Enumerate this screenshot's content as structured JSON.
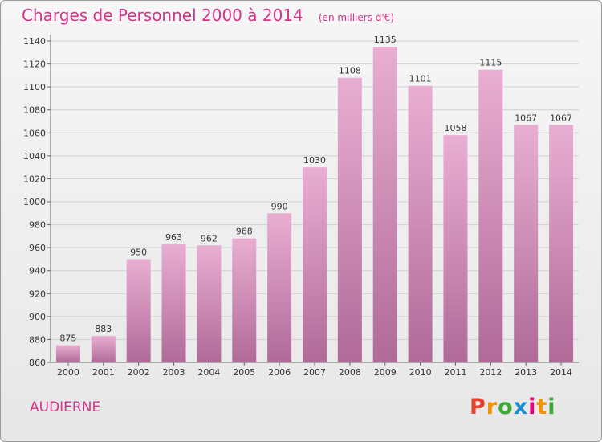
{
  "header": {
    "title": "Charges de Personnel 2000 à 2014",
    "subtitle": "(en milliers d'€)"
  },
  "footer": {
    "city": "AUDIERNE",
    "logo_text": "Proxiti",
    "logo_colors": [
      "#e8412c",
      "#f39200",
      "#3aa935",
      "#1d8ccf",
      "#e5007e",
      "#f39200",
      "#3aa935"
    ]
  },
  "colors": {
    "accent": "#d2348a",
    "bar_top": "#e9aed2",
    "bar_bottom": "#b06a98"
  },
  "chart_data": {
    "type": "bar",
    "title": "Charges de Personnel 2000 à 2014",
    "subtitle": "(en milliers d'€)",
    "categories": [
      "2000",
      "2001",
      "2002",
      "2003",
      "2004",
      "2005",
      "2006",
      "2007",
      "2008",
      "2009",
      "2010",
      "2011",
      "2012",
      "2013",
      "2014"
    ],
    "values": [
      875,
      883,
      950,
      963,
      962,
      968,
      990,
      1030,
      1108,
      1135,
      1101,
      1058,
      1115,
      1067,
      1067
    ],
    "ylim": [
      860,
      1140
    ],
    "yticks": [
      860,
      880,
      900,
      920,
      940,
      960,
      980,
      1000,
      1020,
      1040,
      1060,
      1080,
      1100,
      1120,
      1140
    ],
    "grid": true,
    "xlabel": "",
    "ylabel": ""
  }
}
